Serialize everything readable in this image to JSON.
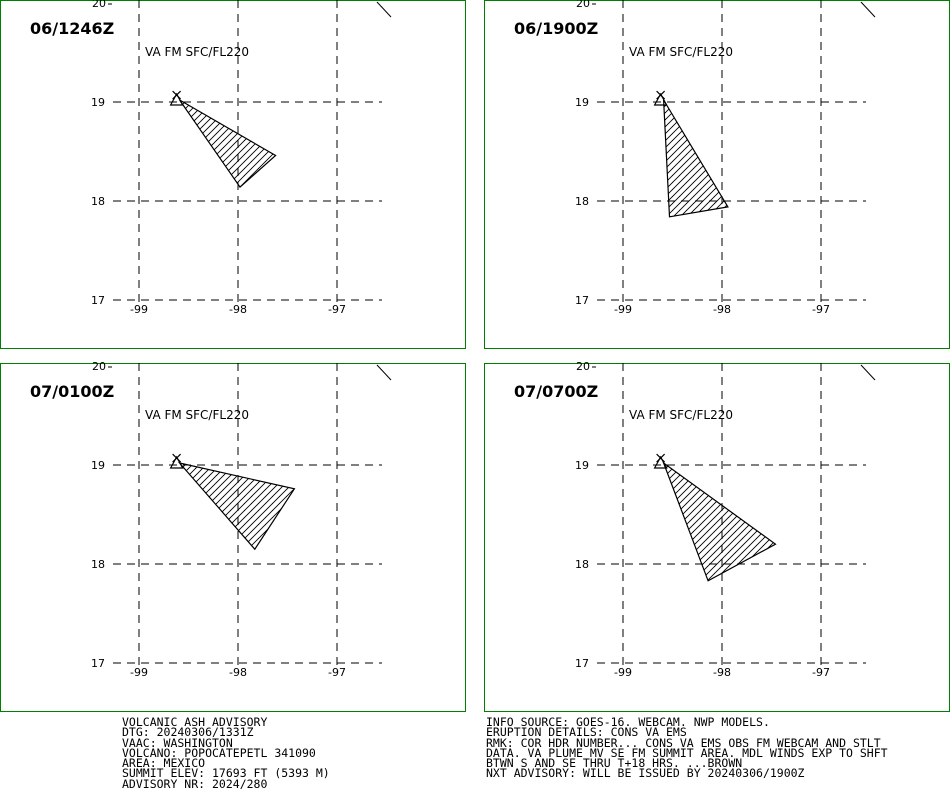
{
  "panels": [
    {
      "time": "06/1246Z",
      "label": "VA FM SFC/FL220",
      "polygon": [
        [
          -98.59,
          19.02
        ],
        [
          -97.62,
          18.46
        ],
        [
          -97.98,
          18.14
        ]
      ]
    },
    {
      "time": "06/1900Z",
      "label": "VA FM SFC/FL220",
      "polygon": [
        [
          -98.59,
          19.02
        ],
        [
          -97.94,
          17.94
        ],
        [
          -98.53,
          17.84
        ]
      ]
    },
    {
      "time": "07/0100Z",
      "label": "VA FM SFC/FL220",
      "polygon": [
        [
          -98.59,
          19.02
        ],
        [
          -97.43,
          18.76
        ],
        [
          -97.83,
          18.15
        ]
      ]
    },
    {
      "time": "07/0700Z",
      "label": "VA FM SFC/FL220",
      "polygon": [
        [
          -98.59,
          19.02
        ],
        [
          -97.46,
          18.2
        ],
        [
          -98.14,
          17.83
        ]
      ]
    }
  ],
  "axes": {
    "lon_ticks": [
      "-99",
      "-98",
      "-97"
    ],
    "lat_ticks": [
      "17",
      "18",
      "19"
    ],
    "lat_top": "20"
  },
  "volcano": {
    "lon": -98.62,
    "lat": 19.02,
    "name": "POPOCATEPETL"
  },
  "advisory_left": [
    "VOLCANIC ASH ADVISORY",
    "DTG: 20240306/1331Z",
    "VAAC: WASHINGTON",
    "VOLCANO: POPOCATEPETL 341090",
    "AREA: MEXICO",
    "SUMMIT ELEV: 17693 FT (5393 M)",
    "ADVISORY NR: 2024/280"
  ],
  "advisory_right": [
    "INFO SOURCE: GOES-16. WEBCAM. NWP MODELS.",
    "ERUPTION DETAILS: CONS VA EMS",
    "RMK: COR HDR NUMBER... CONS VA EMS OBS FM WEBCAM AND STLT",
    "DATA. VA PLUME MV SE FM SUMMIT AREA. MDL WINDS EXP TO SHFT",
    "BTWN S AND SE THRU T+18 HRS. ...BROWN",
    "NXT ADVISORY: WILL BE ISSUED BY 20240306/1900Z"
  ],
  "colors": {
    "frame": "#008000",
    "ink": "#000000"
  }
}
